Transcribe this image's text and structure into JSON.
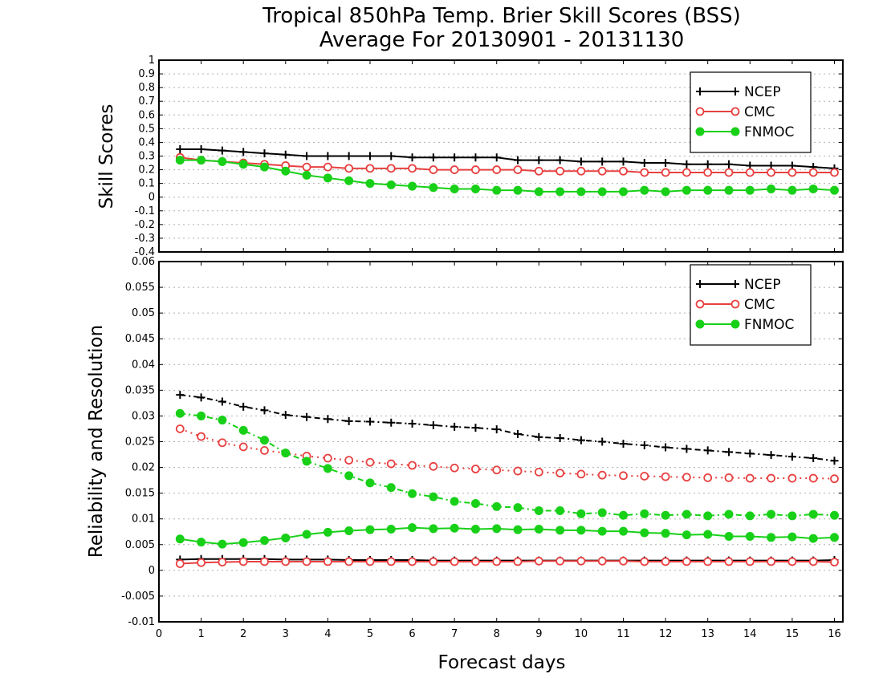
{
  "title": {
    "line1": "Tropical 850hPa Temp. Brier Skill Scores (BSS)",
    "line2": "Average For 20130901 - 20131130"
  },
  "xlabel": "Forecast days",
  "colors": {
    "NCEP": "#000000",
    "CMC": "#e84040",
    "FNMOC": "#18d018"
  },
  "chart_data": [
    {
      "type": "line",
      "ylabel": "Skill Scores",
      "xlim": [
        0,
        16.2
      ],
      "ylim": [
        -0.4,
        1
      ],
      "xticks": [
        0,
        1,
        2,
        3,
        4,
        5,
        6,
        7,
        8,
        9,
        10,
        11,
        12,
        13,
        14,
        15,
        16
      ],
      "yticks": [
        "-0.4",
        "-0.3",
        "-0.2",
        "-0.1",
        "0",
        "0.1",
        "0.2",
        "0.3",
        "0.4",
        "0.5",
        "0.6",
        "0.7",
        "0.8",
        "0.9",
        "1"
      ],
      "grid": true,
      "legend_position": "top-right",
      "x": [
        0.5,
        1,
        1.5,
        2,
        2.5,
        3,
        3.5,
        4,
        4.5,
        5,
        5.5,
        6,
        6.5,
        7,
        7.5,
        8,
        8.5,
        9,
        9.5,
        10,
        10.5,
        11,
        11.5,
        12,
        12.5,
        13,
        13.5,
        14,
        14.5,
        15,
        15.5,
        16
      ],
      "series": [
        {
          "name": "NCEP",
          "marker": "plus",
          "style": "solid",
          "values": [
            0.35,
            0.35,
            0.34,
            0.33,
            0.32,
            0.31,
            0.3,
            0.3,
            0.3,
            0.3,
            0.3,
            0.29,
            0.29,
            0.29,
            0.29,
            0.29,
            0.27,
            0.27,
            0.27,
            0.26,
            0.26,
            0.26,
            0.25,
            0.25,
            0.24,
            0.24,
            0.24,
            0.23,
            0.23,
            0.23,
            0.22,
            0.21
          ]
        },
        {
          "name": "CMC",
          "marker": "open-circle",
          "style": "solid",
          "values": [
            0.29,
            0.27,
            0.26,
            0.25,
            0.24,
            0.23,
            0.22,
            0.22,
            0.21,
            0.21,
            0.21,
            0.21,
            0.2,
            0.2,
            0.2,
            0.2,
            0.2,
            0.19,
            0.19,
            0.19,
            0.19,
            0.19,
            0.18,
            0.18,
            0.18,
            0.18,
            0.18,
            0.18,
            0.18,
            0.18,
            0.18,
            0.18
          ]
        },
        {
          "name": "FNMOC",
          "marker": "filled-circle",
          "style": "solid",
          "values": [
            0.27,
            0.27,
            0.26,
            0.24,
            0.22,
            0.19,
            0.16,
            0.14,
            0.12,
            0.1,
            0.09,
            0.08,
            0.07,
            0.06,
            0.06,
            0.05,
            0.05,
            0.04,
            0.04,
            0.04,
            0.04,
            0.04,
            0.05,
            0.04,
            0.05,
            0.05,
            0.05,
            0.05,
            0.06,
            0.05,
            0.06,
            0.05
          ]
        }
      ]
    },
    {
      "type": "line",
      "ylabel": "Reliability and Resolution",
      "xlim": [
        0,
        16.2
      ],
      "ylim": [
        -0.01,
        0.06
      ],
      "xticks": [
        0,
        1,
        2,
        3,
        4,
        5,
        6,
        7,
        8,
        9,
        10,
        11,
        12,
        13,
        14,
        15,
        16
      ],
      "yticks": [
        "-0.01",
        "-0.005",
        "0",
        "0.005",
        "0.01",
        "0.015",
        "0.02",
        "0.025",
        "0.03",
        "0.035",
        "0.04",
        "0.045",
        "0.05",
        "0.055",
        "0.06"
      ],
      "grid": true,
      "legend_position": "top-right",
      "x": [
        0.5,
        1,
        1.5,
        2,
        2.5,
        3,
        3.5,
        4,
        4.5,
        5,
        5.5,
        6,
        6.5,
        7,
        7.5,
        8,
        8.5,
        9,
        9.5,
        10,
        10.5,
        11,
        11.5,
        12,
        12.5,
        13,
        13.5,
        14,
        14.5,
        15,
        15.5,
        16
      ],
      "series": [
        {
          "name": "NCEP",
          "marker": "plus",
          "style": "dash-dot",
          "group": "resolution",
          "values": [
            0.0341,
            0.0336,
            0.0328,
            0.0318,
            0.0311,
            0.0302,
            0.0298,
            0.0294,
            0.029,
            0.0289,
            0.0287,
            0.0285,
            0.0282,
            0.0279,
            0.0277,
            0.0274,
            0.0265,
            0.0259,
            0.0257,
            0.0253,
            0.025,
            0.0246,
            0.0243,
            0.0239,
            0.0236,
            0.0233,
            0.023,
            0.0227,
            0.0224,
            0.0221,
            0.0218,
            0.0213
          ]
        },
        {
          "name": "NCEP",
          "marker": "plus",
          "style": "solid",
          "group": "reliability",
          "values": [
            0.0021,
            0.0022,
            0.0022,
            0.0022,
            0.0022,
            0.0021,
            0.0021,
            0.0021,
            0.002,
            0.002,
            0.002,
            0.002,
            0.0019,
            0.0019,
            0.0019,
            0.0019,
            0.0019,
            0.0019,
            0.0019,
            0.0019,
            0.0019,
            0.0019,
            0.0019,
            0.0019,
            0.0019,
            0.0019,
            0.0019,
            0.0019,
            0.0019,
            0.0019,
            0.0019,
            0.002
          ]
        },
        {
          "name": "CMC",
          "marker": "open-circle",
          "style": "dot",
          "group": "resolution",
          "values": [
            0.0275,
            0.026,
            0.0248,
            0.024,
            0.0233,
            0.0228,
            0.0222,
            0.0218,
            0.0214,
            0.021,
            0.0207,
            0.0204,
            0.0202,
            0.0199,
            0.0197,
            0.0195,
            0.0193,
            0.0191,
            0.0189,
            0.0187,
            0.0185,
            0.0184,
            0.0183,
            0.0182,
            0.0181,
            0.018,
            0.018,
            0.0179,
            0.0179,
            0.0179,
            0.0179,
            0.0178
          ]
        },
        {
          "name": "CMC",
          "marker": "open-circle",
          "style": "solid",
          "group": "reliability",
          "values": [
            0.0013,
            0.0015,
            0.0016,
            0.0017,
            0.0017,
            0.0017,
            0.0017,
            0.0017,
            0.0017,
            0.0017,
            0.0017,
            0.0017,
            0.0017,
            0.0017,
            0.0017,
            0.0017,
            0.0017,
            0.0018,
            0.0018,
            0.0018,
            0.0018,
            0.0018,
            0.0017,
            0.0017,
            0.0017,
            0.0017,
            0.0017,
            0.0017,
            0.0017,
            0.0017,
            0.0017,
            0.0016
          ]
        },
        {
          "name": "FNMOC",
          "marker": "filled-circle",
          "style": "dash-dot",
          "group": "resolution",
          "values": [
            0.0305,
            0.03,
            0.0292,
            0.0272,
            0.0253,
            0.0228,
            0.0212,
            0.0198,
            0.0184,
            0.017,
            0.0161,
            0.0149,
            0.0143,
            0.0134,
            0.013,
            0.0124,
            0.0122,
            0.0116,
            0.0116,
            0.011,
            0.0112,
            0.0107,
            0.011,
            0.0107,
            0.0109,
            0.0106,
            0.0109,
            0.0106,
            0.0109,
            0.0106,
            0.0109,
            0.0107
          ]
        },
        {
          "name": "FNMOC",
          "marker": "filled-circle",
          "style": "solid",
          "group": "reliability",
          "values": [
            0.0061,
            0.0055,
            0.0051,
            0.0054,
            0.0058,
            0.0063,
            0.007,
            0.0074,
            0.0077,
            0.0079,
            0.008,
            0.0083,
            0.0081,
            0.0082,
            0.008,
            0.0081,
            0.0079,
            0.008,
            0.0078,
            0.0078,
            0.0076,
            0.0076,
            0.0073,
            0.0072,
            0.0069,
            0.007,
            0.0066,
            0.0066,
            0.0064,
            0.0065,
            0.0062,
            0.0064
          ]
        }
      ]
    }
  ]
}
